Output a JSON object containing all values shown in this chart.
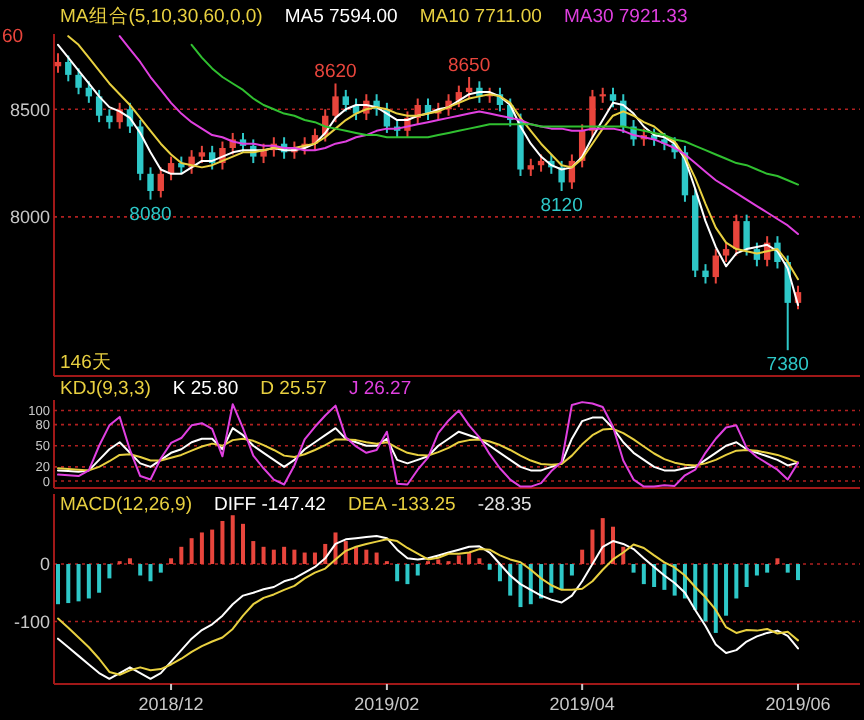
{
  "chart_data": [
    {
      "type": "candlestick",
      "categories": [
        null,
        null,
        null,
        null,
        null,
        null,
        null,
        null,
        null,
        null,
        null,
        null,
        null,
        null,
        null,
        null,
        null,
        null,
        null,
        null,
        null,
        null,
        null,
        null,
        null,
        null,
        null,
        null,
        null,
        null,
        null,
        null,
        null,
        null,
        null,
        null,
        null,
        null,
        null,
        null,
        null,
        null,
        null,
        null,
        null,
        null,
        null,
        null,
        null,
        null,
        null,
        null,
        null,
        null,
        null,
        null,
        null,
        null,
        null,
        null,
        null,
        null,
        null,
        null,
        null,
        null,
        null,
        null,
        null,
        null,
        null,
        null,
        null
      ],
      "ohlc": [
        [
          8700,
          8760,
          8670,
          8720
        ],
        [
          8720,
          8750,
          8630,
          8660
        ],
        [
          8660,
          8690,
          8570,
          8600
        ],
        [
          8600,
          8630,
          8530,
          8560
        ],
        [
          8560,
          8590,
          8440,
          8470
        ],
        [
          8470,
          8500,
          8410,
          8440
        ],
        [
          8440,
          8530,
          8410,
          8500
        ],
        [
          8500,
          8530,
          8390,
          8420
        ],
        [
          8420,
          8450,
          8170,
          8200
        ],
        [
          8200,
          8230,
          8080,
          8120
        ],
        [
          8120,
          8230,
          8090,
          8200
        ],
        [
          8200,
          8280,
          8170,
          8250
        ],
        [
          8250,
          8280,
          8200,
          8230
        ],
        [
          8230,
          8310,
          8200,
          8280
        ],
        [
          8280,
          8330,
          8250,
          8300
        ],
        [
          8300,
          8330,
          8220,
          8250
        ],
        [
          8250,
          8350,
          8220,
          8320
        ],
        [
          8320,
          8390,
          8290,
          8360
        ],
        [
          8360,
          8390,
          8300,
          8330
        ],
        [
          8330,
          8360,
          8250,
          8280
        ],
        [
          8280,
          8340,
          8250,
          8310
        ],
        [
          8310,
          8370,
          8280,
          8340
        ],
        [
          8340,
          8370,
          8270,
          8300
        ],
        [
          8300,
          8350,
          8270,
          8320
        ],
        [
          8320,
          8370,
          8290,
          8340
        ],
        [
          8340,
          8410,
          8310,
          8380
        ],
        [
          8380,
          8500,
          8350,
          8470
        ],
        [
          8470,
          8620,
          8440,
          8560
        ],
        [
          8560,
          8590,
          8490,
          8520
        ],
        [
          8520,
          8550,
          8450,
          8480
        ],
        [
          8480,
          8570,
          8450,
          8540
        ],
        [
          8540,
          8570,
          8470,
          8500
        ],
        [
          8500,
          8530,
          8390,
          8420
        ],
        [
          8420,
          8450,
          8370,
          8400
        ],
        [
          8400,
          8490,
          8370,
          8460
        ],
        [
          8460,
          8550,
          8430,
          8520
        ],
        [
          8520,
          8550,
          8450,
          8480
        ],
        [
          8480,
          8530,
          8450,
          8500
        ],
        [
          8500,
          8570,
          8470,
          8540
        ],
        [
          8540,
          8610,
          8510,
          8580
        ],
        [
          8580,
          8650,
          8550,
          8600
        ],
        [
          8600,
          8630,
          8530,
          8560
        ],
        [
          8560,
          8600,
          8530,
          8570
        ],
        [
          8570,
          8600,
          8490,
          8520
        ],
        [
          8520,
          8550,
          8420,
          8450
        ],
        [
          8450,
          8480,
          8190,
          8220
        ],
        [
          8220,
          8270,
          8190,
          8240
        ],
        [
          8240,
          8290,
          8210,
          8260
        ],
        [
          8260,
          8290,
          8200,
          8230
        ],
        [
          8230,
          8260,
          8120,
          8160
        ],
        [
          8160,
          8290,
          8130,
          8260
        ],
        [
          8260,
          8430,
          8230,
          8400
        ],
        [
          8400,
          8590,
          8370,
          8560
        ],
        [
          8560,
          8600,
          8530,
          8570
        ],
        [
          8570,
          8600,
          8510,
          8540
        ],
        [
          8540,
          8570,
          8390,
          8420
        ],
        [
          8420,
          8450,
          8330,
          8360
        ],
        [
          8360,
          8410,
          8330,
          8380
        ],
        [
          8380,
          8410,
          8330,
          8360
        ],
        [
          8360,
          8390,
          8310,
          8340
        ],
        [
          8340,
          8370,
          8270,
          8300
        ],
        [
          8300,
          8330,
          8070,
          8100
        ],
        [
          8100,
          8130,
          7720,
          7750
        ],
        [
          7750,
          7780,
          7690,
          7720
        ],
        [
          7720,
          7850,
          7690,
          7820
        ],
        [
          7820,
          7880,
          7790,
          7850
        ],
        [
          7850,
          8010,
          7820,
          7980
        ],
        [
          7980,
          8010,
          7820,
          7850
        ],
        [
          7850,
          7880,
          7770,
          7800
        ],
        [
          7800,
          7910,
          7770,
          7880
        ],
        [
          7880,
          7910,
          7760,
          7790
        ],
        [
          7790,
          7820,
          7380,
          7600
        ],
        [
          7600,
          7680,
          7570,
          7650
        ]
      ],
      "colors": [
        "#e8453c",
        "#2ec8c8",
        "#2ec8c8",
        "#2ec8c8",
        "#2ec8c8",
        "#2ec8c8",
        "#e8453c",
        "#2ec8c8",
        "#2ec8c8",
        "#2ec8c8",
        "#e8453c",
        "#e8453c",
        "#2ec8c8",
        "#e8453c",
        "#e8453c",
        "#2ec8c8",
        "#e8453c",
        "#e8453c",
        "#2ec8c8",
        "#2ec8c8",
        "#e8453c",
        "#e8453c",
        "#2ec8c8",
        "#e8453c",
        "#e8453c",
        "#e8453c",
        "#e8453c",
        "#e8453c",
        "#2ec8c8",
        "#2ec8c8",
        "#e8453c",
        "#2ec8c8",
        "#2ec8c8",
        "#2ec8c8",
        "#e8453c",
        "#e8453c",
        "#2ec8c8",
        "#e8453c",
        "#e8453c",
        "#e8453c",
        "#e8453c",
        "#2ec8c8",
        "#e8453c",
        "#2ec8c8",
        "#2ec8c8",
        "#2ec8c8",
        "#e8453c",
        "#e8453c",
        "#2ec8c8",
        "#2ec8c8",
        "#e8453c",
        "#e8453c",
        "#e8453c",
        "#e8453c",
        "#2ec8c8",
        "#2ec8c8",
        "#2ec8c8",
        "#e8453c",
        "#2ec8c8",
        "#2ec8c8",
        "#2ec8c8",
        "#2ec8c8",
        "#2ec8c8",
        "#2ec8c8",
        "#e8453c",
        "#e8453c",
        "#e8453c",
        "#2ec8c8",
        "#2ec8c8",
        "#e8453c",
        "#2ec8c8",
        "#2ec8c8",
        "#e8453c"
      ],
      "series": [
        {
          "type": "line",
          "name": "MA5 7594.00",
          "color": "#ffffff",
          "values": [
            8800,
            8740,
            8680,
            8620,
            8560,
            8510,
            8490,
            8460,
            8390,
            8300,
            8220,
            8200,
            8200,
            8230,
            8260,
            8260,
            8280,
            8300,
            8310,
            8310,
            8310,
            8320,
            8310,
            8310,
            8320,
            8340,
            8390,
            8460,
            8500,
            8520,
            8520,
            8510,
            8480,
            8450,
            8450,
            8470,
            8480,
            8500,
            8510,
            8540,
            8570,
            8580,
            8580,
            8560,
            8520,
            8420,
            8340,
            8280,
            8240,
            8220,
            8230,
            8280,
            8370,
            8450,
            8530,
            8520,
            8480,
            8420,
            8380,
            8370,
            8340,
            8270,
            8130,
            7980,
            7860,
            7770,
            7830,
            7850,
            7860,
            7870,
            7840,
            7760,
            7590
          ]
        },
        {
          "type": "line",
          "name": "MA10 7711.00",
          "color": "#e8d040",
          "values": [
            null,
            8840,
            8800,
            8740,
            8680,
            8620,
            8570,
            8520,
            8460,
            8400,
            8340,
            8290,
            8250,
            8240,
            8230,
            8240,
            8260,
            8280,
            8300,
            8300,
            8310,
            8320,
            8320,
            8320,
            8330,
            8340,
            8370,
            8410,
            8450,
            8480,
            8500,
            8510,
            8500,
            8480,
            8470,
            8470,
            8480,
            8490,
            8510,
            8530,
            8550,
            8560,
            8570,
            8560,
            8530,
            8460,
            8400,
            8340,
            8290,
            8240,
            8230,
            8270,
            8340,
            8410,
            8470,
            8490,
            8470,
            8440,
            8420,
            8380,
            8350,
            8280,
            8180,
            8060,
            7950,
            7880,
            7850,
            7840,
            7830,
            7840,
            7850,
            7790,
            7710
          ]
        },
        {
          "type": "line",
          "name": "MA30 7921.33",
          "color": "#e040e0",
          "values": [
            null,
            null,
            null,
            null,
            null,
            null,
            8840,
            8780,
            8720,
            8650,
            8590,
            8530,
            8480,
            8440,
            8410,
            8380,
            8370,
            8350,
            8340,
            8340,
            8330,
            8330,
            8320,
            8320,
            8310,
            8310,
            8320,
            8340,
            8350,
            8370,
            8380,
            8400,
            8410,
            8410,
            8420,
            8430,
            8440,
            8450,
            8460,
            8470,
            8480,
            8490,
            8480,
            8470,
            8460,
            8450,
            8430,
            8420,
            8410,
            8410,
            8400,
            8400,
            8410,
            8410,
            8410,
            8400,
            8380,
            8370,
            8360,
            8340,
            8320,
            8290,
            8250,
            8210,
            8170,
            8140,
            8110,
            8080,
            8050,
            8020,
            7990,
            7960,
            7920
          ]
        },
        {
          "type": "line",
          "color": "#30c030",
          "values": [
            null,
            null,
            null,
            null,
            null,
            null,
            null,
            null,
            null,
            null,
            null,
            null,
            null,
            8800,
            8740,
            8690,
            8650,
            8620,
            8590,
            8550,
            8520,
            8500,
            8480,
            8470,
            8450,
            8440,
            8420,
            8410,
            8400,
            8390,
            8380,
            8380,
            8370,
            8370,
            8370,
            8370,
            8370,
            8380,
            8390,
            8400,
            8410,
            8420,
            8430,
            8430,
            8430,
            8430,
            8430,
            8420,
            8420,
            8420,
            8420,
            8420,
            8420,
            8420,
            8420,
            8420,
            8410,
            8400,
            8390,
            8380,
            8360,
            8350,
            8330,
            8310,
            8290,
            8270,
            8250,
            8240,
            8220,
            8200,
            8190,
            8170,
            8150
          ]
        }
      ],
      "ylim": [
        7260,
        8850
      ],
      "yticks": [
        8000,
        8500
      ],
      "grid": "y",
      "tick_labels": "y",
      "legend": "top",
      "annotations": [
        "MA组合(5,10,30,60,0,0)",
        "60",
        {
          "text": "8080",
          "y": 8080
        },
        {
          "text": "8620",
          "y": 8620
        },
        {
          "text": "8650",
          "y": 8650
        },
        {
          "text": "8120",
          "y": 8120
        },
        {
          "text": "7380",
          "y": 7380
        },
        "146天"
      ]
    },
    {
      "type": "line",
      "categories": [
        null,
        null,
        null,
        null,
        null,
        null,
        null,
        null,
        null,
        null,
        null,
        null,
        null,
        null,
        null,
        null,
        null,
        null,
        null,
        null,
        null,
        null,
        null,
        null,
        null,
        null,
        null,
        null,
        null,
        null,
        null,
        null,
        null,
        null,
        null,
        null,
        null,
        null,
        null,
        null,
        null,
        null,
        null,
        null,
        null,
        null,
        null,
        null,
        null,
        null,
        null,
        null,
        null,
        null,
        null,
        null,
        null,
        null,
        null,
        null,
        null,
        null,
        null,
        null,
        null,
        null,
        null,
        null,
        null,
        null,
        null,
        null,
        null
      ],
      "series": [
        {
          "name": "K 25.80",
          "color": "#ffffff",
          "values": [
            15,
            14,
            13,
            15,
            30,
            45,
            55,
            40,
            25,
            20,
            30,
            40,
            45,
            55,
            60,
            60,
            45,
            75,
            65,
            50,
            40,
            30,
            20,
            30,
            45,
            55,
            65,
            75,
            60,
            55,
            50,
            50,
            60,
            30,
            25,
            30,
            35,
            50,
            60,
            70,
            65,
            60,
            50,
            40,
            30,
            20,
            15,
            15,
            20,
            25,
            60,
            85,
            90,
            90,
            75,
            55,
            40,
            30,
            20,
            15,
            15,
            18,
            20,
            30,
            40,
            50,
            55,
            45,
            40,
            35,
            30,
            22,
            26
          ]
        },
        {
          "name": "D 25.57",
          "color": "#e8d040",
          "values": [
            18,
            17,
            16,
            15,
            20,
            28,
            37,
            38,
            34,
            29,
            29,
            33,
            37,
            43,
            49,
            53,
            50,
            58,
            60,
            57,
            51,
            44,
            36,
            34,
            38,
            44,
            51,
            59,
            59,
            58,
            55,
            53,
            55,
            47,
            40,
            37,
            36,
            41,
            47,
            55,
            58,
            59,
            56,
            51,
            44,
            36,
            29,
            24,
            23,
            24,
            36,
            52,
            65,
            73,
            74,
            68,
            59,
            49,
            39,
            31,
            26,
            23,
            22,
            25,
            30,
            37,
            43,
            44,
            43,
            40,
            37,
            32,
            26
          ]
        },
        {
          "name": "J 26.27",
          "color": "#e040e0",
          "values": [
            9,
            8,
            7,
            15,
            50,
            79,
            91,
            44,
            7,
            2,
            32,
            54,
            61,
            79,
            82,
            74,
            35,
            109,
            75,
            36,
            18,
            2,
            -5,
            22,
            59,
            77,
            93,
            107,
            62,
            49,
            40,
            44,
            70,
            -4,
            -5,
            16,
            33,
            68,
            86,
            100,
            79,
            62,
            38,
            18,
            2,
            -8,
            -8,
            -3,
            14,
            27,
            108,
            112,
            110,
            105,
            77,
            29,
            2,
            -8,
            -8,
            -6,
            -7,
            8,
            16,
            40,
            60,
            76,
            79,
            47,
            34,
            25,
            16,
            2,
            26
          ]
        }
      ],
      "ylim": [
        -10,
        115
      ],
      "yticks": [
        0,
        20,
        50,
        80,
        100
      ],
      "grid": "y",
      "tick_labels": "y",
      "legend": "top",
      "annotations": [
        "KDJ(9,3,3)"
      ]
    },
    {
      "type": "bar",
      "categories": [
        null,
        null,
        null,
        null,
        null,
        null,
        null,
        null,
        null,
        null,
        null,
        "2018/12",
        null,
        null,
        null,
        null,
        null,
        null,
        null,
        null,
        null,
        null,
        null,
        null,
        null,
        null,
        null,
        null,
        null,
        null,
        null,
        null,
        "2019/02",
        null,
        null,
        null,
        null,
        null,
        null,
        null,
        null,
        null,
        null,
        null,
        null,
        null,
        null,
        null,
        null,
        null,
        null,
        "2019/04",
        null,
        null,
        null,
        null,
        null,
        null,
        null,
        null,
        null,
        null,
        null,
        null,
        null,
        null,
        null,
        null,
        null,
        null,
        null,
        null,
        "2019/06"
      ],
      "series": [
        {
          "colors": [
            "#2ec8c8",
            "#2ec8c8",
            "#2ec8c8",
            "#2ec8c8",
            "#2ec8c8",
            "#2ec8c8",
            "#e8453c",
            "#e8453c",
            "#2ec8c8",
            "#2ec8c8",
            "#2ec8c8",
            "#e8453c",
            "#e8453c",
            "#e8453c",
            "#e8453c",
            "#e8453c",
            "#e8453c",
            "#e8453c",
            "#e8453c",
            "#e8453c",
            "#e8453c",
            "#e8453c",
            "#e8453c",
            "#e8453c",
            "#e8453c",
            "#e8453c",
            "#e8453c",
            "#e8453c",
            "#e8453c",
            "#e8453c",
            "#e8453c",
            "#e8453c",
            "#e8453c",
            "#2ec8c8",
            "#2ec8c8",
            "#2ec8c8",
            "#e8453c",
            "#e8453c",
            "#e8453c",
            "#e8453c",
            "#e8453c",
            "#e8453c",
            "#2ec8c8",
            "#2ec8c8",
            "#2ec8c8",
            "#2ec8c8",
            "#2ec8c8",
            "#2ec8c8",
            "#2ec8c8",
            "#2ec8c8",
            "#2ec8c8",
            "#e8453c",
            "#e8453c",
            "#e8453c",
            "#e8453c",
            "#e8453c",
            "#2ec8c8",
            "#2ec8c8",
            "#2ec8c8",
            "#2ec8c8",
            "#2ec8c8",
            "#2ec8c8",
            "#2ec8c8",
            "#2ec8c8",
            "#2ec8c8",
            "#2ec8c8",
            "#2ec8c8",
            "#2ec8c8",
            "#2ec8c8",
            "#2ec8c8",
            "#e8453c",
            "#2ec8c8",
            "#2ec8c8"
          ],
          "values": [
            -70,
            -68,
            -65,
            -60,
            -50,
            -25,
            5,
            10,
            -20,
            -30,
            -15,
            10,
            30,
            45,
            55,
            60,
            75,
            85,
            70,
            40,
            30,
            25,
            30,
            25,
            20,
            20,
            35,
            55,
            40,
            30,
            25,
            20,
            5,
            -30,
            -35,
            -20,
            5,
            8,
            5,
            15,
            20,
            10,
            -10,
            -30,
            -55,
            -75,
            -70,
            -60,
            -50,
            -45,
            -20,
            25,
            60,
            80,
            65,
            30,
            -15,
            -35,
            -40,
            -45,
            -55,
            -60,
            -80,
            -100,
            -120,
            -90,
            -60,
            -40,
            -20,
            -15,
            10,
            -15,
            -28
          ]
        },
        {
          "type": "line",
          "name": "DIFF -147.42",
          "color": "#ffffff",
          "values": [
            -130,
            -145,
            -160,
            -175,
            -190,
            -200,
            -190,
            -180,
            -190,
            -200,
            -190,
            -170,
            -150,
            -130,
            -115,
            -105,
            -90,
            -70,
            -55,
            -50,
            -44,
            -40,
            -30,
            -25,
            -15,
            -5,
            10,
            35,
            43,
            45,
            47,
            49,
            45,
            25,
            10,
            8,
            10,
            15,
            20,
            25,
            30,
            31,
            20,
            0,
            -20,
            -35,
            -45,
            -55,
            -62,
            -67,
            -55,
            -30,
            0,
            30,
            40,
            35,
            26,
            10,
            -5,
            -20,
            -33,
            -50,
            -80,
            -108,
            -140,
            -155,
            -150,
            -135,
            -126,
            -120,
            -116,
            -125,
            -147
          ]
        },
        {
          "type": "line",
          "name": "DEA -133.25",
          "color": "#e8d040",
          "values": [
            -95,
            -111,
            -128,
            -145,
            -165,
            -188,
            -193,
            -185,
            -180,
            -185,
            -183,
            -175,
            -165,
            -153,
            -143,
            -135,
            -128,
            -113,
            -90,
            -70,
            -59,
            -53,
            -45,
            -38,
            -25,
            -15,
            -8,
            8,
            23,
            30,
            35,
            39,
            43,
            40,
            28,
            18,
            8,
            11,
            18,
            18,
            20,
            26,
            25,
            15,
            8,
            3,
            -10,
            -25,
            -37,
            -45,
            -45,
            -43,
            -30,
            -10,
            8,
            20,
            34,
            28,
            15,
            3,
            -6,
            -20,
            -40,
            -58,
            -80,
            -110,
            -120,
            -115,
            -116,
            -113,
            -121,
            -118,
            -133
          ]
        }
      ],
      "ylim": [
        -209,
        122
      ],
      "yticks": [
        -100,
        0
      ],
      "grid": "y",
      "legend": "top",
      "annotations": [
        "MACD(12,26,9)",
        "-28.35"
      ]
    }
  ]
}
